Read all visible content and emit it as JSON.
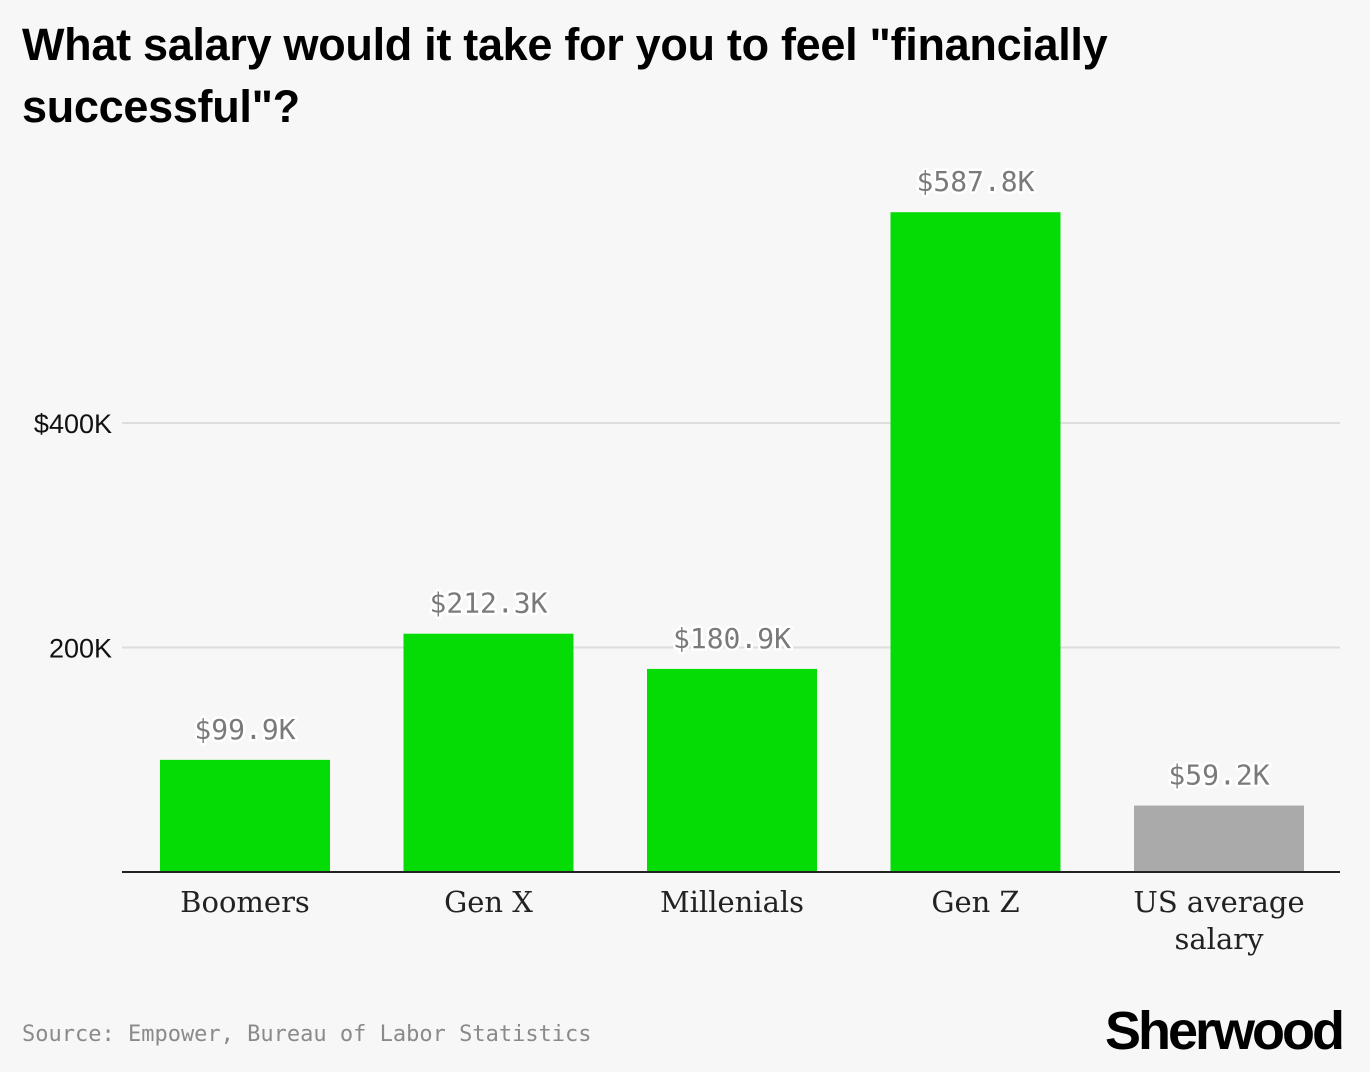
{
  "title": "What salary would it take for you to feel \"financially successful\"?",
  "source": "Source: Empower, Bureau of Labor Statistics",
  "brand": "Sherwood",
  "chart_data": {
    "type": "bar",
    "categories": [
      "Boomers",
      "Gen X",
      "Millenials",
      "Gen Z",
      "US average salary"
    ],
    "values": [
      99.9,
      212.3,
      180.9,
      587.8,
      59.2
    ],
    "value_labels": [
      "$99.9K",
      "$212.3K",
      "$180.9K",
      "$587.8K",
      "$59.2K"
    ],
    "bar_colors": [
      "#05dc05",
      "#05dc05",
      "#05dc05",
      "#05dc05",
      "#aaaaaa"
    ],
    "ytick_values": [
      200,
      400
    ],
    "ytick_labels": [
      "200K",
      "$400K"
    ],
    "ylim": [
      0,
      600
    ],
    "grid": true,
    "xlabel": "",
    "ylabel": ""
  }
}
